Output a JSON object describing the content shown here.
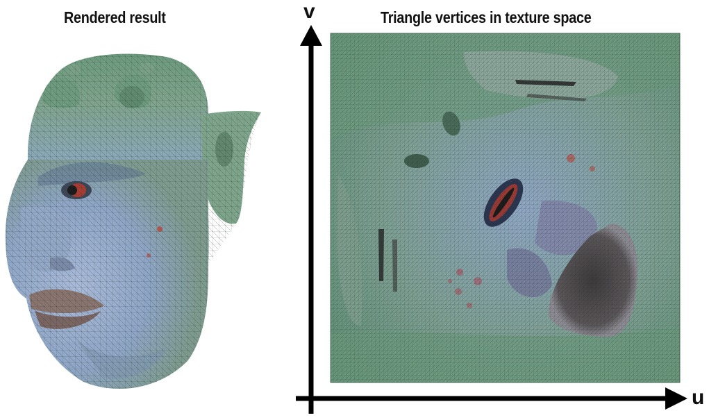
{
  "left_panel": {
    "title": "Rendered result"
  },
  "right_panel": {
    "title": "Triangle vertices in texture space"
  },
  "axes": {
    "v_label": "v",
    "u_label": "u"
  },
  "colors": {
    "skin_green": "#6f9c80",
    "skin_blue": "#8fa6c9",
    "lip_brown": "#8a7470",
    "wire": "#2a3a30",
    "axis": "#000000"
  }
}
